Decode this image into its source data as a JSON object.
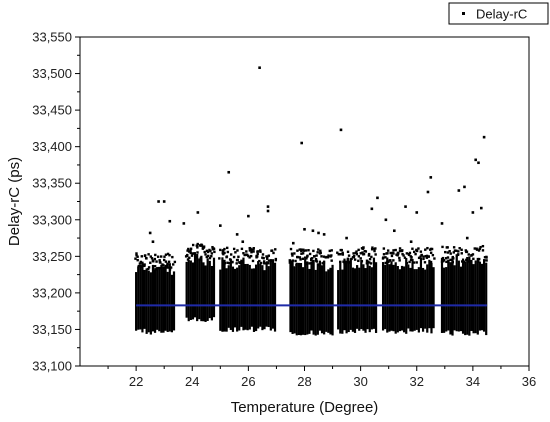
{
  "chart_data": {
    "type": "scatter",
    "title": "",
    "xlabel": "Temperature (Degree)",
    "ylabel": "Delay-rC (ps)",
    "xlim": [
      20,
      36
    ],
    "ylim": [
      33100,
      33550
    ],
    "x_ticks": [
      22,
      24,
      26,
      28,
      30,
      32,
      34,
      36
    ],
    "y_ticks": [
      33100,
      33150,
      33200,
      33250,
      33300,
      33350,
      33400,
      33450,
      33500,
      33550
    ],
    "x_tick_labels": [
      "22",
      "24",
      "26",
      "28",
      "30",
      "32",
      "34",
      "36"
    ],
    "y_tick_labels": [
      "33,100",
      "33,150",
      "33,200",
      "33,250",
      "33,300",
      "33,350",
      "33,400",
      "33,450",
      "33,500",
      "33,550"
    ],
    "grid": false,
    "legend": {
      "position": "top-right",
      "entries": [
        "Delay-rC"
      ]
    },
    "series": [
      {
        "name": "Delay-rC",
        "marker": "square",
        "color": "#000000",
        "point_count_estimate": "dense band, about 33145–33240 ps at every temperature",
        "bands": [
          {
            "x_range": [
              22.0,
              23.4
            ],
            "y_low": 33147,
            "y_high": 33232
          },
          {
            "x_range": [
              23.8,
              24.8
            ],
            "y_low": 33163,
            "y_high": 33245
          },
          {
            "x_range": [
              25.0,
              27.0
            ],
            "y_low": 33150,
            "y_high": 33240
          },
          {
            "x_range": [
              27.5,
              29.0
            ],
            "y_low": 33145,
            "y_high": 33238
          },
          {
            "x_range": [
              29.2,
              30.6
            ],
            "y_low": 33147,
            "y_high": 33240
          },
          {
            "x_range": [
              30.8,
              32.6
            ],
            "y_low": 33148,
            "y_high": 33240
          },
          {
            "x_range": [
              32.9,
              34.5
            ],
            "y_low": 33145,
            "y_high": 33242
          }
        ],
        "outliers": [
          {
            "x": 22.5,
            "y": 33282
          },
          {
            "x": 22.8,
            "y": 33325
          },
          {
            "x": 23.0,
            "y": 33325
          },
          {
            "x": 22.6,
            "y": 33270
          },
          {
            "x": 23.2,
            "y": 33298
          },
          {
            "x": 24.2,
            "y": 33310
          },
          {
            "x": 23.7,
            "y": 33295
          },
          {
            "x": 25.0,
            "y": 33292
          },
          {
            "x": 25.3,
            "y": 33365
          },
          {
            "x": 25.6,
            "y": 33280
          },
          {
            "x": 26.0,
            "y": 33305
          },
          {
            "x": 26.4,
            "y": 33508
          },
          {
            "x": 26.7,
            "y": 33318
          },
          {
            "x": 26.7,
            "y": 33312
          },
          {
            "x": 25.8,
            "y": 33270
          },
          {
            "x": 27.9,
            "y": 33405
          },
          {
            "x": 28.0,
            "y": 33287
          },
          {
            "x": 28.3,
            "y": 33285
          },
          {
            "x": 28.5,
            "y": 33282
          },
          {
            "x": 28.7,
            "y": 33280
          },
          {
            "x": 29.3,
            "y": 33423
          },
          {
            "x": 29.5,
            "y": 33275
          },
          {
            "x": 30.1,
            "y": 33262
          },
          {
            "x": 30.4,
            "y": 33315
          },
          {
            "x": 30.6,
            "y": 33330
          },
          {
            "x": 30.9,
            "y": 33300
          },
          {
            "x": 31.2,
            "y": 33285
          },
          {
            "x": 31.6,
            "y": 33318
          },
          {
            "x": 32.0,
            "y": 33310
          },
          {
            "x": 32.4,
            "y": 33338
          },
          {
            "x": 32.5,
            "y": 33358
          },
          {
            "x": 32.9,
            "y": 33295
          },
          {
            "x": 33.5,
            "y": 33340
          },
          {
            "x": 33.7,
            "y": 33345
          },
          {
            "x": 34.1,
            "y": 33382
          },
          {
            "x": 34.2,
            "y": 33378
          },
          {
            "x": 34.4,
            "y": 33413
          },
          {
            "x": 34.3,
            "y": 33316
          },
          {
            "x": 34.0,
            "y": 33310
          },
          {
            "x": 33.8,
            "y": 33275
          },
          {
            "x": 31.8,
            "y": 33270
          },
          {
            "x": 27.6,
            "y": 33268
          }
        ]
      }
    ],
    "reference_line": {
      "y": 33183,
      "x_range": [
        22.0,
        34.5
      ],
      "color": "#1f2aa8"
    }
  }
}
